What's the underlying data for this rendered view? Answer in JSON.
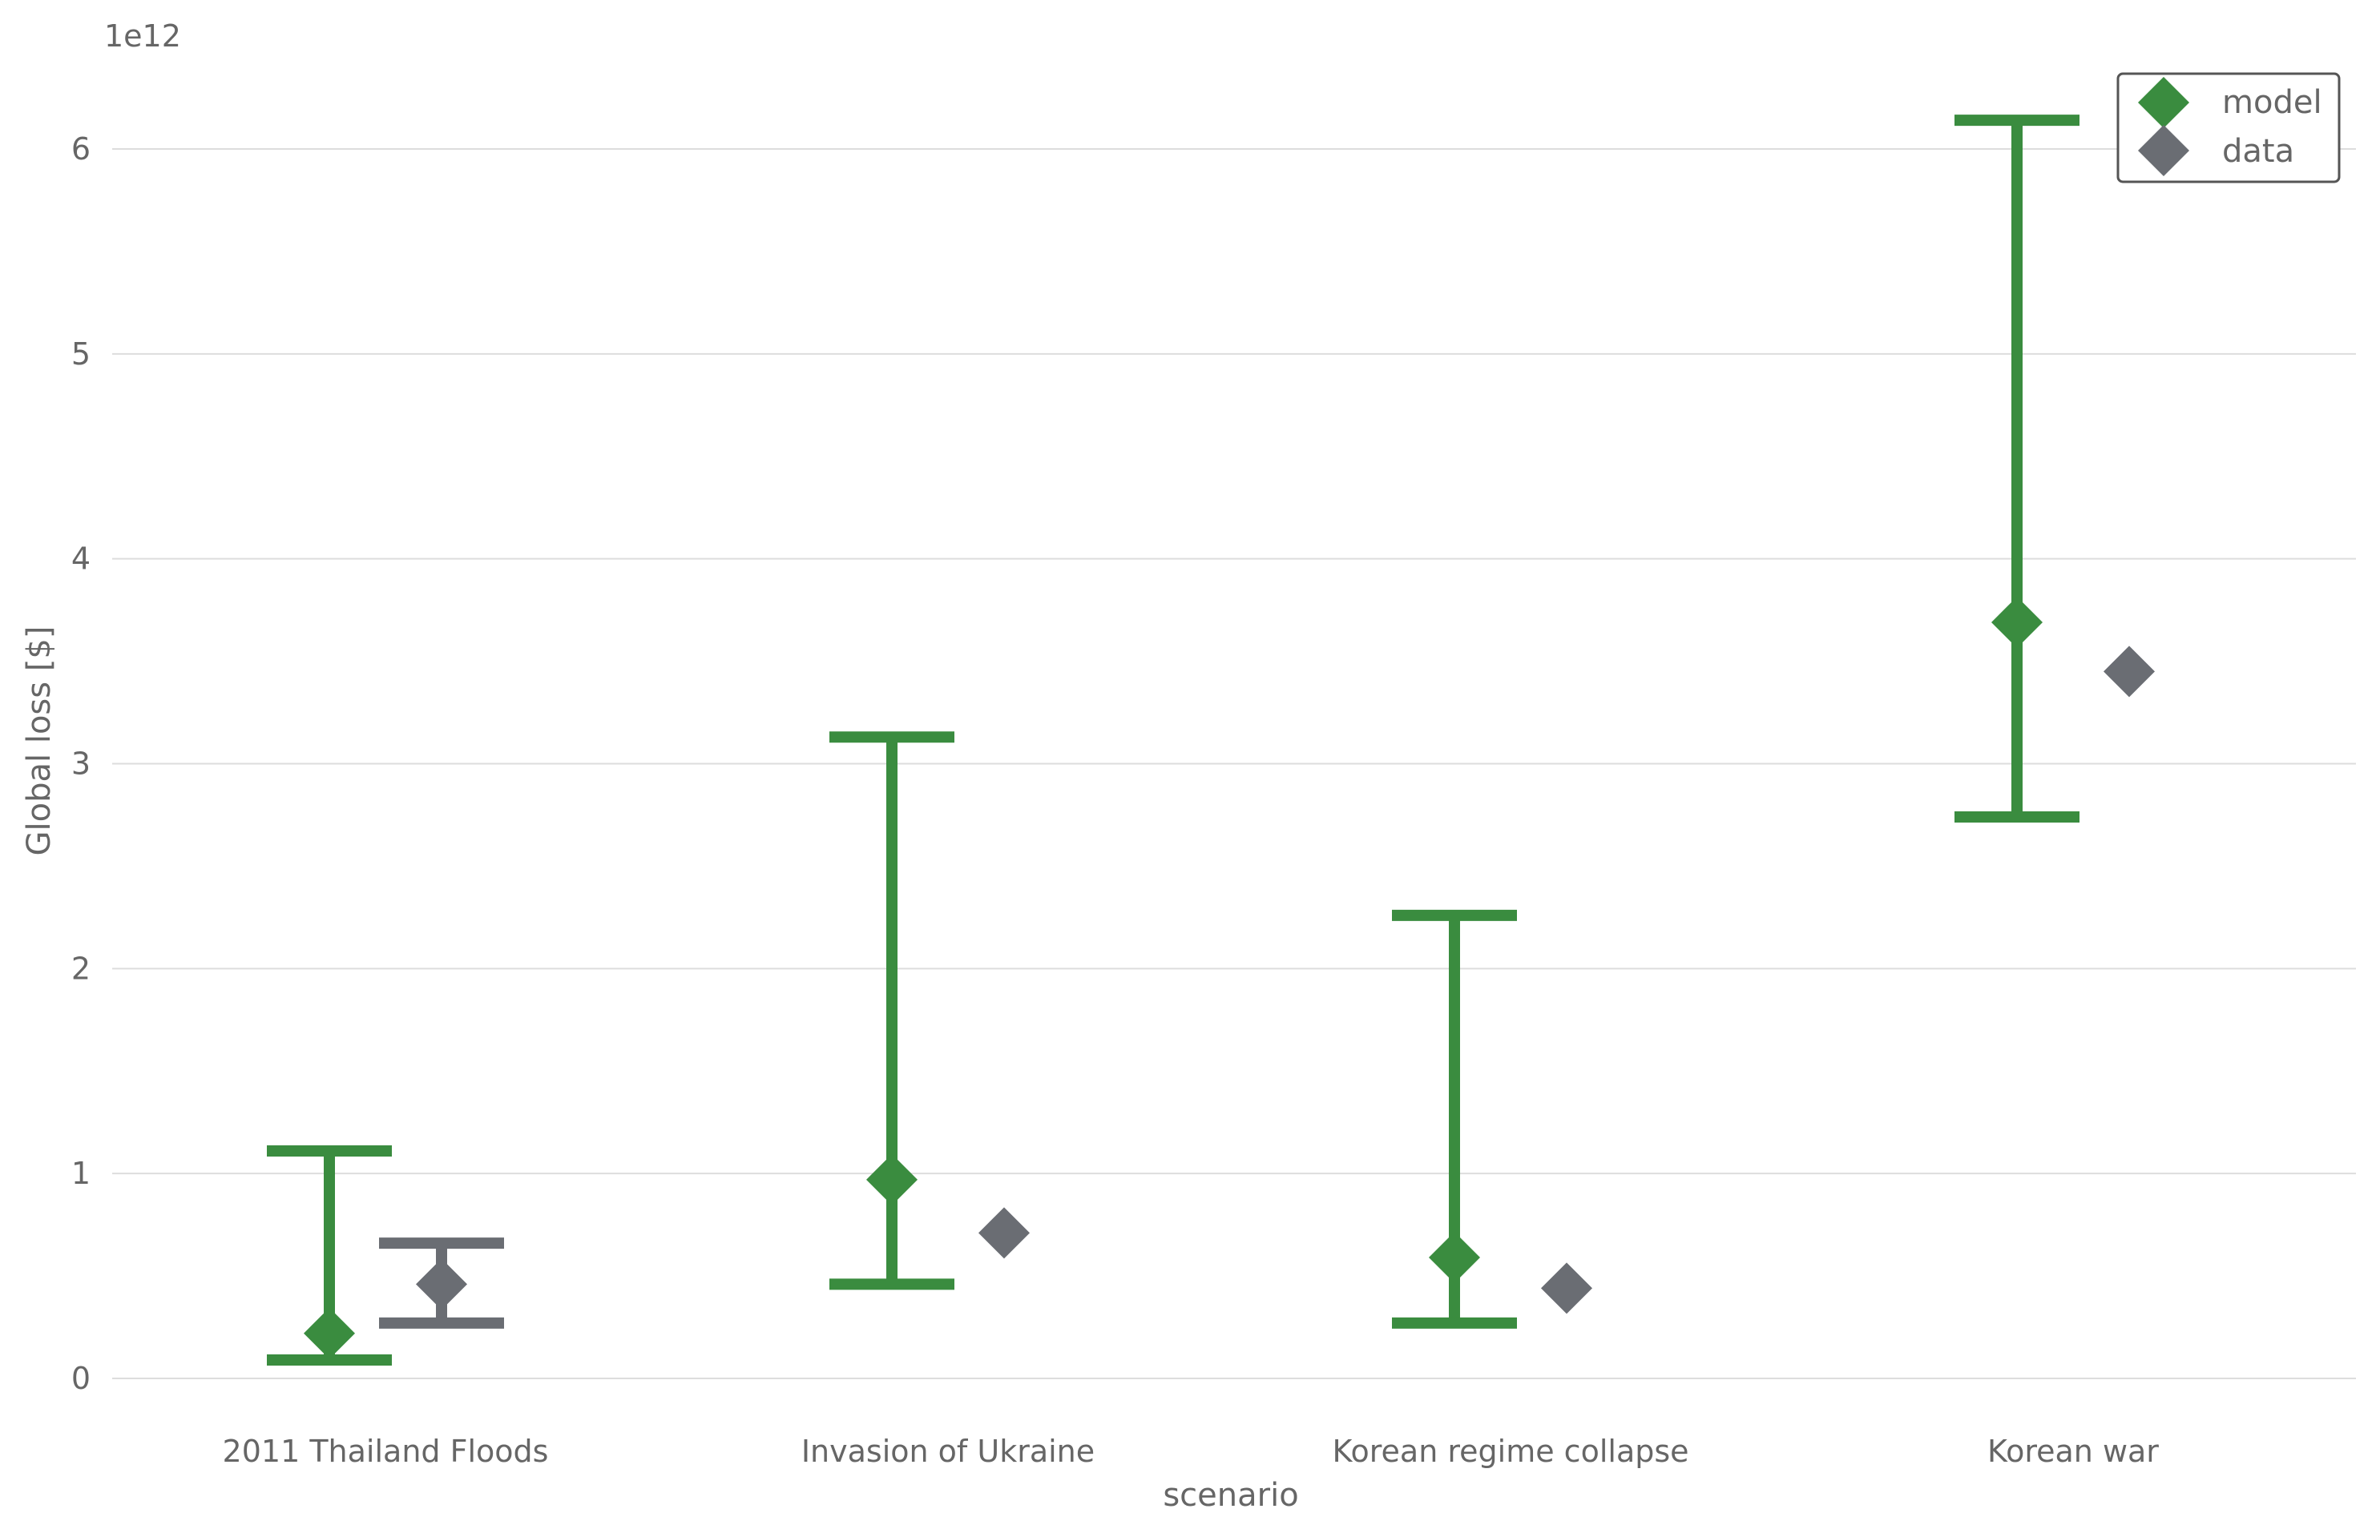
{
  "chart_data": {
    "type": "scatter",
    "title": "",
    "xlabel": "scenario",
    "ylabel": "Global loss [$]",
    "y_offset_label": "1e12",
    "ylim": [
      -0.05,
      6.4
    ],
    "y_ticks": [
      0,
      1,
      2,
      3,
      4,
      5,
      6
    ],
    "grid": "horizontal",
    "legend_position": "top-right",
    "categories": [
      "2011 Thailand Floods",
      "Invasion of Ukraine",
      "Korean regime collapse",
      "Korean war"
    ],
    "series": [
      {
        "name": "model",
        "color": "#3a8c3f",
        "marker": "diamond",
        "values": [
          0.22,
          0.97,
          0.59,
          3.69
        ],
        "lower": [
          0.09,
          0.46,
          0.27,
          2.74
        ],
        "upper": [
          1.11,
          3.13,
          2.26,
          6.14
        ]
      },
      {
        "name": "data",
        "color": "#6a6d73",
        "marker": "diamond",
        "values": [
          0.46,
          0.71,
          0.44,
          3.45
        ],
        "lower": [
          0.27,
          null,
          null,
          null
        ],
        "upper": [
          0.66,
          null,
          null,
          null
        ]
      }
    ]
  }
}
